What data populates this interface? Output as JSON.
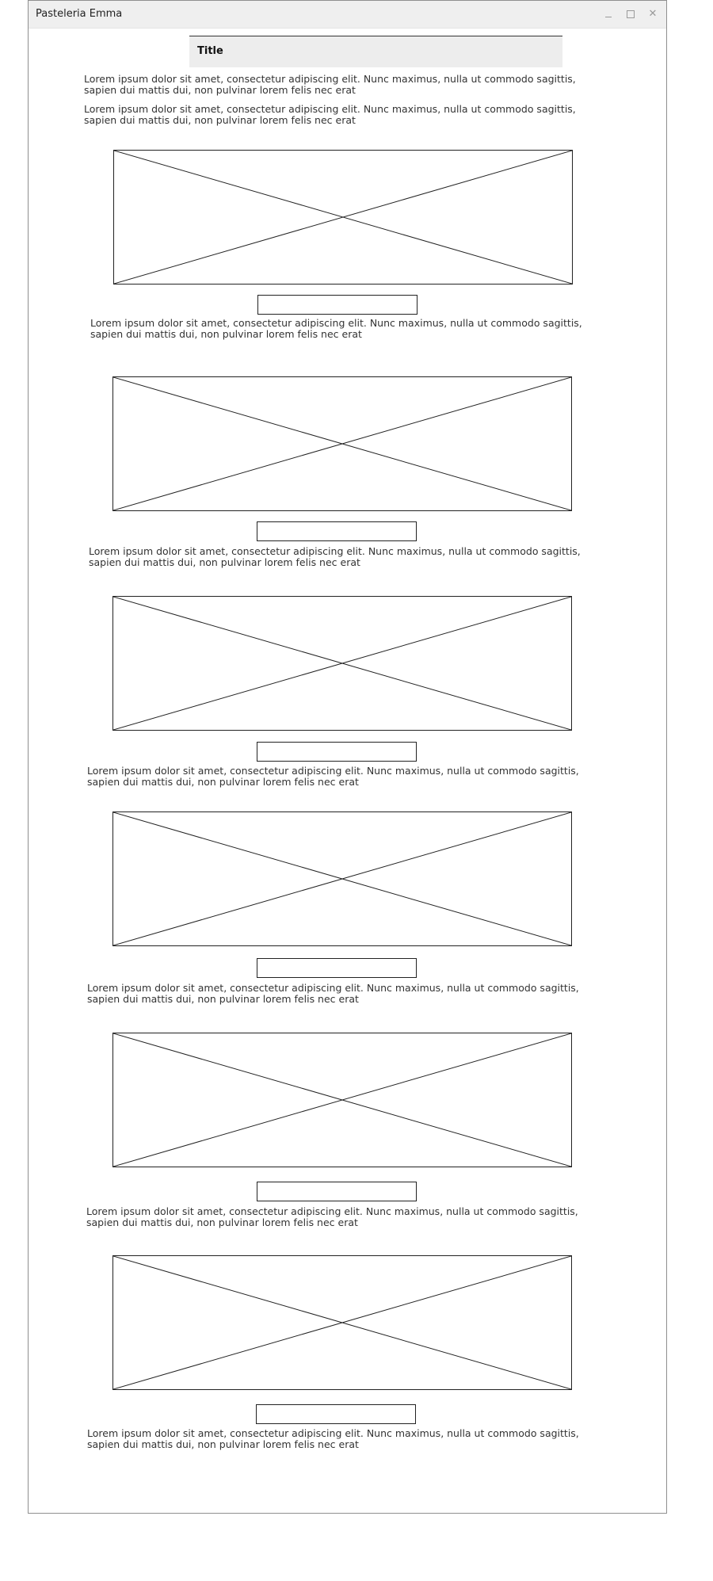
{
  "window": {
    "title": "Pasteleria Emma"
  },
  "header": {
    "title": "Title"
  },
  "intro": {
    "paragraph_1": "Lorem ipsum dolor sit amet, consectetur adipiscing elit. Nunc maximus, nulla ut commodo sagittis, sapien dui mattis dui, non pulvinar lorem felis nec erat",
    "paragraph_2": "Lorem ipsum dolor sit amet, consectetur adipiscing elit. Nunc maximus, nulla ut commodo sagittis, sapien dui mattis dui, non pulvinar lorem felis nec erat"
  },
  "products": [
    {
      "description": "Lorem ipsum dolor sit amet, consectetur adipiscing elit. Nunc maximus, nulla ut commodo sagittis, sapien dui mattis dui, non pulvinar lorem felis nec erat",
      "button_label": ""
    },
    {
      "description": "Lorem ipsum dolor sit amet, consectetur adipiscing elit. Nunc maximus, nulla ut commodo sagittis, sapien dui mattis dui, non pulvinar lorem felis nec erat",
      "button_label": ""
    },
    {
      "description": "Lorem ipsum dolor sit amet, consectetur adipiscing elit. Nunc maximus, nulla ut commodo sagittis, sapien dui mattis dui, non pulvinar lorem felis nec erat",
      "button_label": ""
    },
    {
      "description": "Lorem ipsum dolor sit amet, consectetur adipiscing elit. Nunc maximus, nulla ut commodo sagittis, sapien dui mattis dui, non pulvinar lorem felis nec erat",
      "button_label": ""
    },
    {
      "description": "Lorem ipsum dolor sit amet, consectetur adipiscing elit. Nunc maximus, nulla ut commodo sagittis, sapien dui mattis dui, non pulvinar lorem felis nec erat",
      "button_label": ""
    },
    {
      "description": "Lorem ipsum dolor sit amet, consectetur adipiscing elit. Nunc maximus, nulla ut commodo sagittis, sapien dui mattis dui, non pulvinar lorem felis nec erat",
      "button_label": ""
    }
  ],
  "icons": {
    "minimize": "minimize-icon",
    "maximize": "maximize-icon",
    "close": "close-icon"
  }
}
